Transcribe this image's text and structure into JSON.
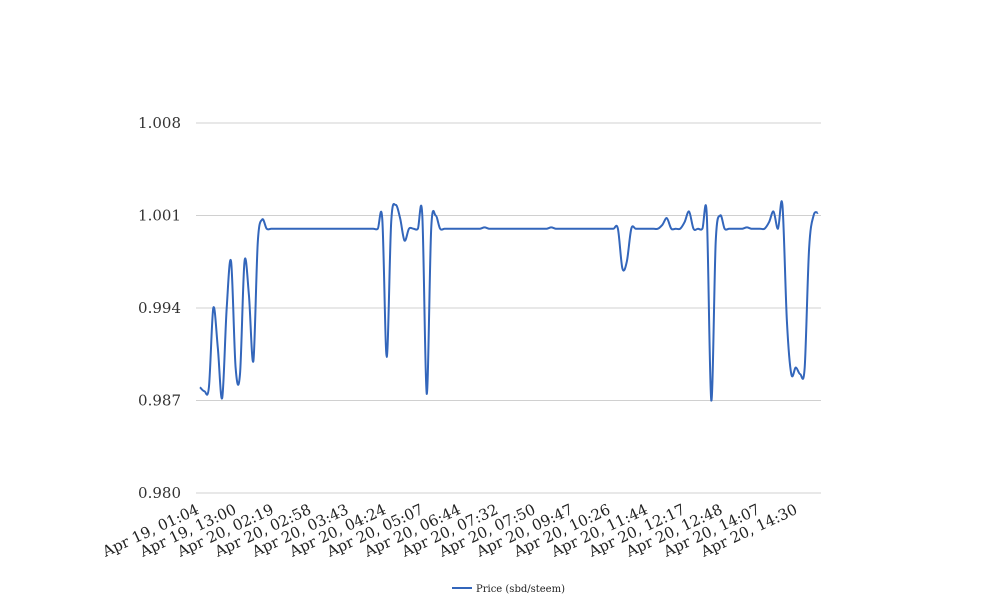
{
  "chart_data": {
    "type": "line",
    "title": "",
    "xlabel": "",
    "ylabel": "",
    "ylim": [
      0.98,
      1.008
    ],
    "yticks": [
      "0.980",
      "0.987",
      "0.994",
      "1.001",
      "1.008"
    ],
    "xticks": [
      "Apr 19, 01:04",
      "Apr 19, 13:00",
      "Apr 20, 02:19",
      "Apr 20, 02:58",
      "Apr 20, 03:43",
      "Apr 20, 04:24",
      "Apr 20, 05:07",
      "Apr 20, 06:44",
      "Apr 20, 07:32",
      "Apr 20, 07:50",
      "Apr 20, 09:47",
      "Apr 20, 10:26",
      "Apr 20, 11:44",
      "Apr 20, 12:17",
      "Apr 20, 12:48",
      "Apr 20, 14:07",
      "Apr 20, 14:30"
    ],
    "grid": true,
    "legend_position": "bottom",
    "series": [
      {
        "name": "Price (sbd/steem)",
        "color": "#3366bb",
        "values": [
          0.988,
          0.9877,
          0.988,
          0.994,
          0.991,
          0.9872,
          0.994,
          0.9975,
          0.9895,
          0.989,
          0.9975,
          0.995,
          0.99,
          0.999,
          1.0007,
          1.0,
          1.0,
          1.0,
          1.0,
          1.0,
          1.0,
          1.0,
          1.0,
          1.0,
          1.0,
          1.0,
          1.0,
          1.0,
          1.0,
          1.0,
          1.0,
          1.0,
          1.0,
          1.0,
          1.0,
          1.0,
          1.0,
          1.0,
          1.0,
          1.0,
          1.0,
          1.0007,
          0.9903,
          1.0005,
          1.0018,
          1.0008,
          0.9991,
          1.0,
          1.0,
          1.0,
          1.001,
          0.9875,
          1.0,
          1.001,
          1.0,
          1.0,
          1.0,
          1.0,
          1.0,
          1.0,
          1.0,
          1.0,
          1.0,
          1.0,
          1.0001,
          1.0,
          1.0,
          1.0,
          1.0,
          1.0,
          1.0,
          1.0,
          1.0,
          1.0,
          1.0,
          1.0,
          1.0,
          1.0,
          1.0,
          1.0001,
          1.0,
          1.0,
          1.0,
          1.0,
          1.0,
          1.0,
          1.0,
          1.0,
          1.0,
          1.0,
          1.0,
          1.0,
          1.0,
          1.0,
          1.0,
          0.997,
          0.9975,
          1.0,
          1.0,
          1.0,
          1.0,
          1.0,
          1.0,
          1.0,
          1.0003,
          1.0008,
          1.0,
          1.0,
          1.0,
          1.0005,
          1.0013,
          1.0,
          1.0,
          1.0,
          1.001,
          0.987,
          0.999,
          1.001,
          1.0,
          1.0,
          1.0,
          1.0,
          1.0,
          1.0001,
          1.0,
          1.0,
          1.0,
          1.0,
          1.0005,
          1.0013,
          1.0,
          1.0018,
          0.993,
          0.989,
          0.9895,
          0.989,
          0.9895,
          0.9985,
          1.001,
          1.0012
        ]
      }
    ]
  }
}
